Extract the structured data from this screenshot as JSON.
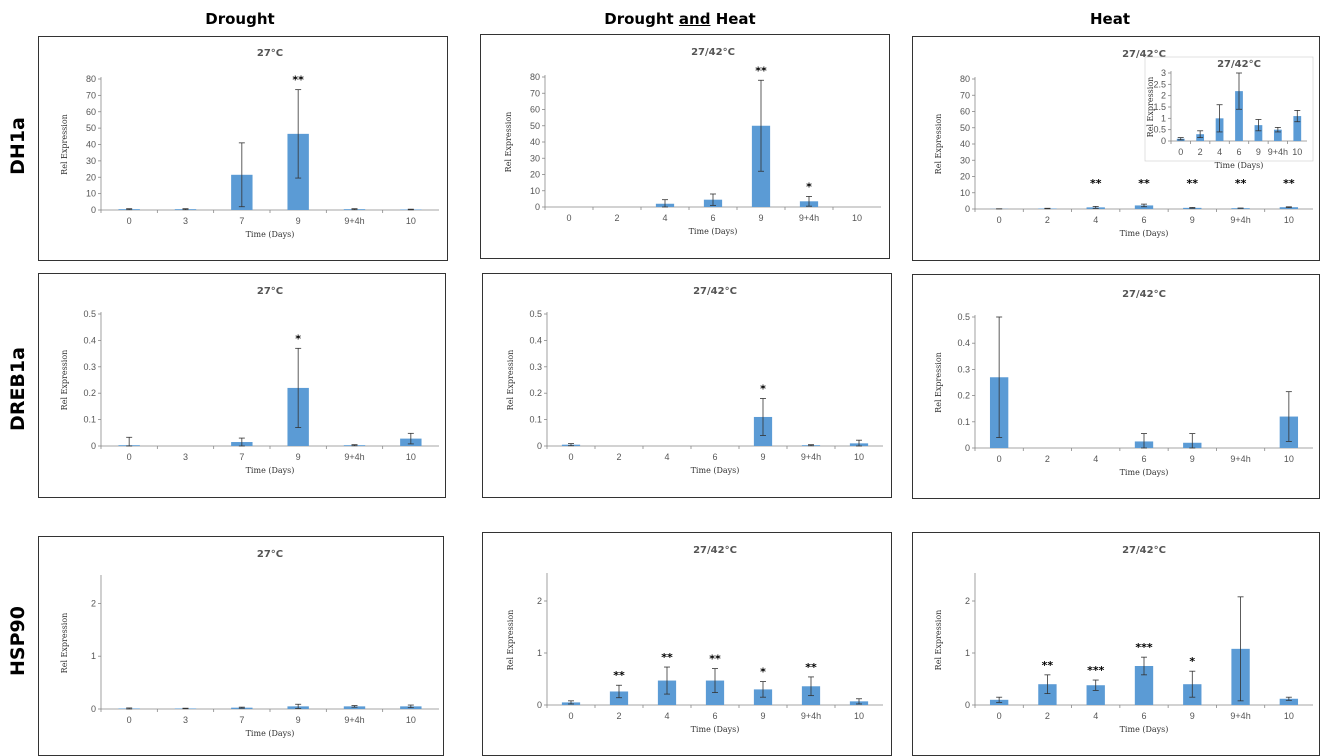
{
  "columns": [
    {
      "label_parts": [
        "Drought"
      ],
      "underline": [
        false
      ]
    },
    {
      "label_parts": [
        "Drought ",
        "and",
        " Heat"
      ],
      "underline": [
        false,
        true,
        false
      ]
    },
    {
      "label_parts": [
        "Heat"
      ],
      "underline": [
        false
      ]
    }
  ],
  "rows": [
    "DH1a",
    "DREB1a",
    "HSP90"
  ],
  "colors": {
    "bar": "#5B9BD5",
    "axis": "#888888",
    "error": "#333333"
  },
  "chart_data": [
    {
      "id": "dh1a-drought",
      "type": "bar",
      "title": "27°C",
      "xlabel": "Time (Days)",
      "ylabel": "Rel Expression",
      "categories": [
        "0",
        "3",
        "7",
        "9",
        "9+4h",
        "10"
      ],
      "values": [
        0.5,
        0.5,
        21.5,
        46.5,
        0.5,
        0.3
      ],
      "errors": [
        0.3,
        0.3,
        19.5,
        27,
        0.3,
        0.2
      ],
      "sig": [
        "",
        "",
        "",
        "**",
        "",
        ""
      ],
      "ylim": [
        0,
        80
      ],
      "yticks": [
        "0",
        "10",
        "20",
        "30",
        "40",
        "50",
        "60",
        "70",
        "80"
      ]
    },
    {
      "id": "dh1a-both",
      "type": "bar",
      "title": "27/42°C",
      "xlabel": "Time (Days)",
      "ylabel": "Rel Expression",
      "categories": [
        "0",
        "2",
        "4",
        "6",
        "9",
        "9+4h",
        "10"
      ],
      "values": [
        0,
        0,
        2,
        4.5,
        50,
        3.5,
        0
      ],
      "errors": [
        0,
        0,
        2.5,
        3.5,
        28,
        3,
        0
      ],
      "sig": [
        "",
        "",
        "",
        "",
        "**",
        "*",
        ""
      ],
      "ylim": [
        0,
        80
      ],
      "yticks": [
        "0",
        "10",
        "20",
        "30",
        "40",
        "50",
        "60",
        "70",
        "80"
      ]
    },
    {
      "id": "dh1a-heat",
      "type": "bar",
      "title": "27/42°C",
      "xlabel": "Time (Days)",
      "ylabel": "Rel Expression",
      "categories": [
        "0",
        "2",
        "4",
        "6",
        "9",
        "9+4h",
        "10"
      ],
      "values": [
        0.1,
        0.3,
        1,
        2.2,
        0.7,
        0.5,
        1.1
      ],
      "errors": [
        0.05,
        0.15,
        0.6,
        0.8,
        0.25,
        0.1,
        0.25
      ],
      "sig": [
        "",
        "",
        "**",
        "**",
        "**",
        "**",
        "**"
      ],
      "ylim": [
        0,
        80
      ],
      "yticks": [
        "0",
        "10",
        "20",
        "30",
        "40",
        "50",
        "60",
        "70",
        "80"
      ],
      "inset": {
        "title": "27/42°C",
        "xlabel": "Time (Days)",
        "ylabel": "Rel Expression",
        "ylim": [
          0,
          3
        ],
        "yticks": [
          "0",
          "0.5",
          "1",
          "1.5",
          "2",
          "2.5",
          "3"
        ]
      }
    },
    {
      "id": "dreb1a-drought",
      "type": "bar",
      "title": "27°C",
      "xlabel": "Time (Days)",
      "ylabel": "Rel Expression",
      "categories": [
        "0",
        "3",
        "7",
        "9",
        "9+4h",
        "10"
      ],
      "values": [
        0.003,
        0,
        0.015,
        0.22,
        0.003,
        0.028
      ],
      "errors": [
        0.03,
        0,
        0.015,
        0.15,
        0.002,
        0.02
      ],
      "sig": [
        "",
        "",
        "",
        "*",
        "",
        ""
      ],
      "ylim": [
        0,
        0.5
      ],
      "yticks": [
        "0",
        "0.1",
        "0.2",
        "0.3",
        "0.4",
        "0.5"
      ]
    },
    {
      "id": "dreb1a-both",
      "type": "bar",
      "title": "27/42°C",
      "xlabel": "Time (Days)",
      "ylabel": "Rel Expression",
      "categories": [
        "0",
        "2",
        "4",
        "6",
        "9",
        "9+4h",
        "10"
      ],
      "values": [
        0.005,
        0,
        0,
        0,
        0.11,
        0.003,
        0.01
      ],
      "errors": [
        0.004,
        0,
        0,
        0,
        0.07,
        0.002,
        0.012
      ],
      "sig": [
        "",
        "",
        "",
        "",
        "*",
        "",
        ""
      ],
      "ylim": [
        0,
        0.5
      ],
      "yticks": [
        "0",
        "0.1",
        "0.2",
        "0.3",
        "0.4",
        "0.5"
      ]
    },
    {
      "id": "dreb1a-heat",
      "type": "bar",
      "title": "27/42°C",
      "xlabel": "Time (Days)",
      "ylabel": "Rel Expression",
      "categories": [
        "0",
        "2",
        "4",
        "6",
        "9",
        "9+4h",
        "10"
      ],
      "values": [
        0.27,
        0,
        0,
        0.025,
        0.02,
        0,
        0.12
      ],
      "errors": [
        0.23,
        0,
        0,
        0.03,
        0.035,
        0,
        0.095
      ],
      "sig": [
        "",
        "",
        "",
        "",
        "",
        "",
        ""
      ],
      "ylim": [
        0,
        0.5
      ],
      "yticks": [
        "0",
        "0.1",
        "0.2",
        "0.3",
        "0.4",
        "0.5"
      ]
    },
    {
      "id": "hsp90-drought",
      "type": "bar",
      "title": "27°C",
      "xlabel": "Time (Days)",
      "ylabel": "Rel Expression",
      "categories": [
        "0",
        "3",
        "7",
        "9",
        "9+4h",
        "10"
      ],
      "values": [
        0.01,
        0.01,
        0.025,
        0.05,
        0.05,
        0.05
      ],
      "errors": [
        0.01,
        0.005,
        0.01,
        0.04,
        0.015,
        0.025
      ],
      "sig": [
        "",
        "",
        "",
        "",
        "",
        ""
      ],
      "ylim": [
        0,
        2.5
      ],
      "yticks": [
        "0",
        "1",
        "2"
      ]
    },
    {
      "id": "hsp90-both",
      "type": "bar",
      "title": "27/42°C",
      "xlabel": "Time (Days)",
      "ylabel": "Rel Expression",
      "categories": [
        "0",
        "2",
        "4",
        "6",
        "9",
        "9+4h",
        "10"
      ],
      "values": [
        0.05,
        0.26,
        0.47,
        0.47,
        0.3,
        0.36,
        0.07
      ],
      "errors": [
        0.03,
        0.12,
        0.26,
        0.23,
        0.15,
        0.18,
        0.05
      ],
      "sig": [
        "",
        "**",
        "**",
        "**",
        "*",
        "**",
        ""
      ],
      "ylim": [
        0,
        2.5
      ],
      "yticks": [
        "0",
        "1",
        "2"
      ]
    },
    {
      "id": "hsp90-heat",
      "type": "bar",
      "title": "27/42°C",
      "xlabel": "Time (Days)",
      "ylabel": "Rel Expression",
      "categories": [
        "0",
        "2",
        "4",
        "6",
        "9",
        "9+4h",
        "10"
      ],
      "values": [
        0.1,
        0.4,
        0.38,
        0.75,
        0.4,
        1.08,
        0.12
      ],
      "errors": [
        0.05,
        0.18,
        0.1,
        0.17,
        0.25,
        1.0,
        0.03
      ],
      "sig": [
        "",
        "**",
        "***",
        "***",
        "*",
        "",
        ""
      ],
      "ylim": [
        0,
        2.5
      ],
      "yticks": [
        "0",
        "1",
        "2"
      ]
    }
  ]
}
